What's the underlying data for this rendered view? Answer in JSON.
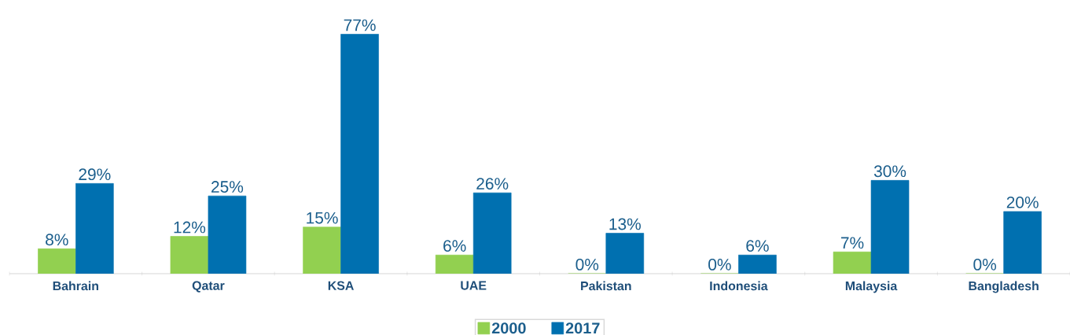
{
  "chart_data": {
    "type": "bar",
    "categories": [
      "Bahrain",
      "Qatar",
      "KSA",
      "UAE",
      "Pakistan",
      "Indonesia",
      "Malaysia",
      "Bangladesh"
    ],
    "series": [
      {
        "name": "2000",
        "color": "#92d050",
        "values": [
          8,
          12,
          15,
          6,
          0,
          0,
          7,
          0
        ],
        "value_labels": [
          "8%",
          "12%",
          "15%",
          "6%",
          "0%",
          "0%",
          "7%",
          "0%"
        ]
      },
      {
        "name": "2017",
        "color": "#0070b0",
        "values": [
          29,
          25,
          77,
          26,
          13,
          6,
          30,
          20
        ],
        "value_labels": [
          "29%",
          "25%",
          "77%",
          "26%",
          "13%",
          "6%",
          "30%",
          "20%"
        ]
      }
    ],
    "legend": "bottom"
  }
}
